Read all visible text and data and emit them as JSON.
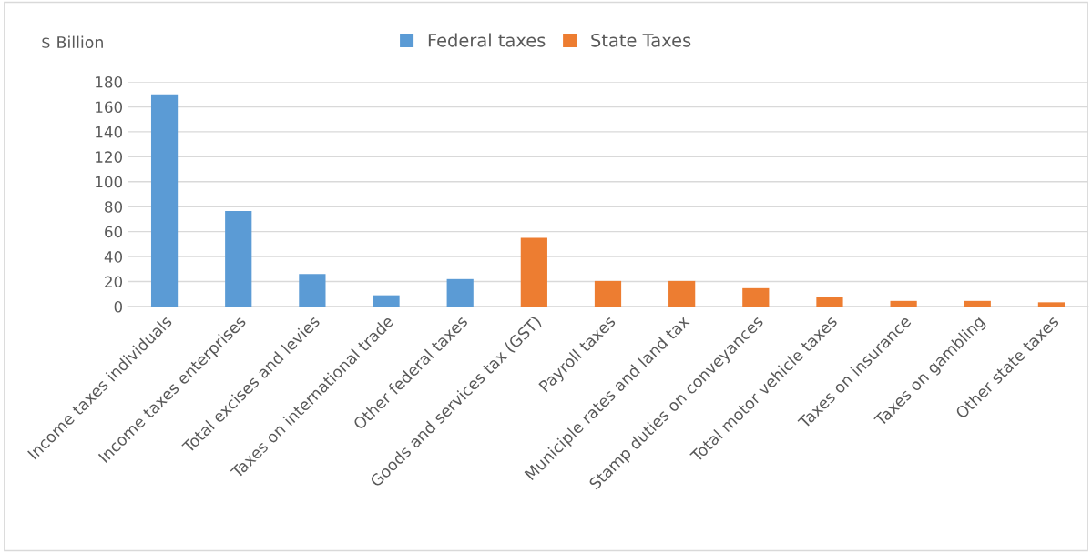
{
  "chart_data": {
    "type": "bar",
    "ylabel": "$ Billion",
    "categories": [
      "Income taxes individuals",
      "Income taxes enterprises",
      "Total excises and levies",
      "Taxes on international trade",
      "Other federal taxes",
      "Goods and services tax (GST)",
      "Payroll taxes",
      "Municiple rates and land tax",
      "Stamp duties on conveyances",
      "Total motor vehicle taxes",
      "Taxes on insurance",
      "Taxes on gambling",
      "Other state taxes"
    ],
    "series": [
      {
        "name": "Federal taxes",
        "color": "#5b9bd5",
        "values": [
          170,
          76.5,
          26,
          9,
          22,
          null,
          null,
          null,
          null,
          null,
          null,
          null,
          null
        ]
      },
      {
        "name": "State Taxes",
        "color": "#ed7d31",
        "values": [
          null,
          null,
          null,
          null,
          null,
          55,
          20.5,
          20.5,
          14.7,
          7.4,
          4.5,
          4.5,
          3.4
        ]
      }
    ],
    "ylim": [
      0,
      180
    ],
    "yticks": [
      0,
      20,
      40,
      60,
      80,
      100,
      120,
      140,
      160,
      180
    ],
    "grid": "y",
    "legend": "top"
  }
}
